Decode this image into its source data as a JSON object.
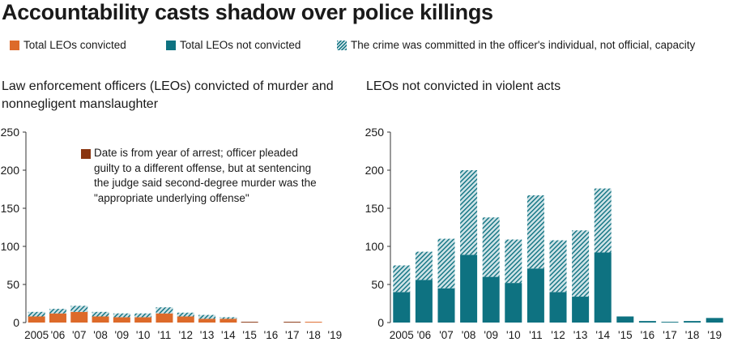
{
  "title": "Accountability casts shadow over police killings",
  "legend": {
    "convicted": "Total LEOs convicted",
    "not_convicted": "Total LEOs not convicted",
    "individual": "The crime was committed in the officer's individual, not official, capacity"
  },
  "colors": {
    "convicted": "#dd6a2a",
    "not_convicted": "#0e7281",
    "hatch_light": "#cfe3e7",
    "note": "#8a3510",
    "axis": "#333333"
  },
  "chart_data": [
    {
      "type": "bar",
      "stacked": true,
      "title": "Law enforcement officers (LEOs) convicted of murder and nonnegligent manslaughter",
      "title_lines": [
        "Law enforcement officers (LEOs) convicted of murder and",
        "nonnegligent manslaughter"
      ],
      "categories": [
        "2005",
        "'06",
        "'07",
        "'08",
        "'09",
        "'10",
        "'11",
        "'12",
        "'13",
        "'14",
        "'15",
        "'16",
        "'17",
        "'18",
        "'19"
      ],
      "ylim": [
        0,
        250
      ],
      "yticks": [
        0,
        50,
        100,
        150,
        200,
        250
      ],
      "series": [
        {
          "name": "Total LEOs convicted",
          "values": [
            8,
            12,
            14,
            8,
            7,
            7,
            12,
            8,
            5,
            5,
            0,
            0,
            0,
            1,
            0
          ]
        },
        {
          "name": "The crime was committed in the officer's individual, not official, capacity",
          "values": [
            6,
            6,
            8,
            6,
            5,
            5,
            8,
            5,
            5,
            2,
            0,
            0,
            0,
            0,
            0
          ]
        },
        {
          "name": "Date is from year of arrest; officer pleaded guilty to a different offense, but at sentencing the judge said second-degree murder was the \"appropriate underlying offense\"",
          "values": [
            0,
            0,
            0,
            0,
            0,
            0,
            0,
            0,
            0,
            0,
            1,
            0,
            1,
            0,
            0
          ]
        }
      ],
      "annotation": "Date is from year of arrest; officer pleaded guilty to a different offense, but at sentencing the judge said second-degree murder was the \"appropriate underlying offense\""
    },
    {
      "type": "bar",
      "stacked": true,
      "title": "LEOs not convicted in violent acts",
      "title_lines": [
        "LEOs not convicted in violent acts"
      ],
      "categories": [
        "2005",
        "'06",
        "'07",
        "'08",
        "'09",
        "'10",
        "'11",
        "'12",
        "'13",
        "'14",
        "'15",
        "'16",
        "'17",
        "'18",
        "'19"
      ],
      "ylim": [
        0,
        250
      ],
      "yticks": [
        0,
        50,
        100,
        150,
        200,
        250
      ],
      "series": [
        {
          "name": "Total LEOs not convicted",
          "values": [
            40,
            56,
            45,
            89,
            60,
            52,
            71,
            40,
            34,
            92,
            8,
            2,
            1,
            2,
            6
          ]
        },
        {
          "name": "The crime was committed in the officer's individual, not official, capacity",
          "values": [
            35,
            37,
            65,
            111,
            78,
            57,
            96,
            68,
            87,
            84,
            0,
            0,
            0,
            0,
            0
          ]
        }
      ]
    }
  ]
}
